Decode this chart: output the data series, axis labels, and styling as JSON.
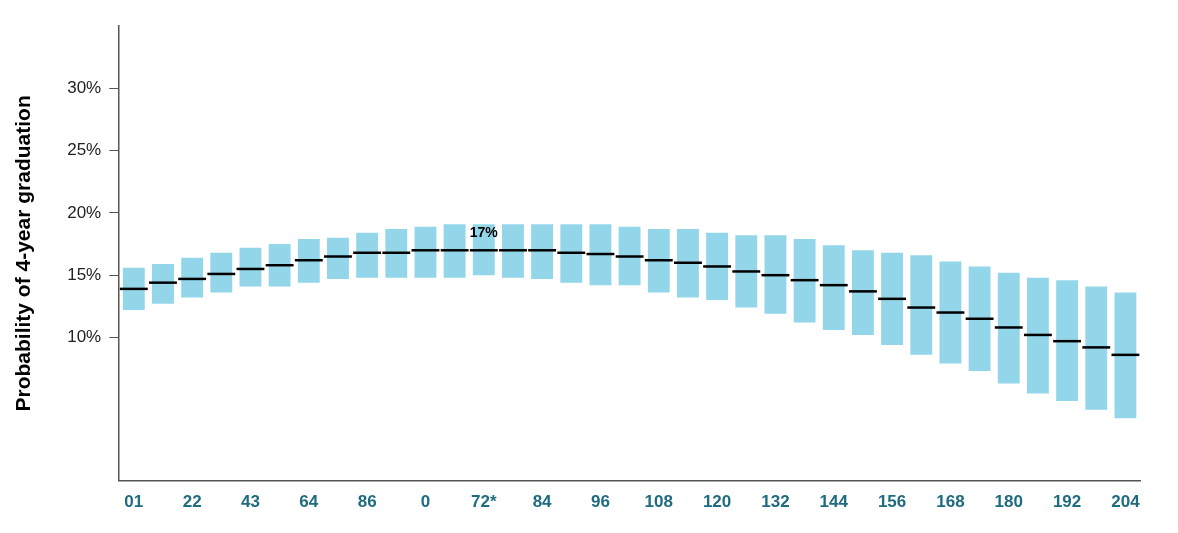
{
  "chart_data": {
    "type": "box",
    "ylabel": "Probability of 4-year graduation",
    "categories": [
      "01",
      null,
      "22",
      null,
      "43",
      null,
      "64",
      null,
      "86",
      null,
      "0",
      null,
      "72*",
      null,
      "84",
      null,
      "96",
      null,
      "108",
      null,
      "120",
      null,
      "132",
      null,
      "144",
      null,
      "156",
      null,
      "168",
      null,
      "180",
      null,
      "192",
      null,
      "204"
    ],
    "color": "#93d6ea",
    "boxes": [
      {
        "low": 12.2,
        "q1": 12.2,
        "median": 13.9,
        "q3": 15.6,
        "high": 15.6
      },
      {
        "low": 12.7,
        "q1": 12.7,
        "median": 14.4,
        "q3": 15.9,
        "high": 15.9
      },
      {
        "low": 13.2,
        "q1": 13.2,
        "median": 14.7,
        "q3": 16.4,
        "high": 16.4
      },
      {
        "low": 13.6,
        "q1": 13.6,
        "median": 15.1,
        "q3": 16.8,
        "high": 16.8
      },
      {
        "low": 14.1,
        "q1": 14.1,
        "median": 15.5,
        "q3": 17.2,
        "high": 17.2
      },
      {
        "low": 14.1,
        "q1": 14.1,
        "median": 15.8,
        "q3": 17.5,
        "high": 17.5
      },
      {
        "low": 14.4,
        "q1": 14.4,
        "median": 16.2,
        "q3": 17.9,
        "high": 17.9
      },
      {
        "low": 14.7,
        "q1": 14.7,
        "median": 16.5,
        "q3": 18.0,
        "high": 18.0
      },
      {
        "low": 14.8,
        "q1": 14.8,
        "median": 16.8,
        "q3": 18.4,
        "high": 18.4
      },
      {
        "low": 14.8,
        "q1": 14.8,
        "median": 16.8,
        "q3": 18.7,
        "high": 18.7
      },
      {
        "low": 14.8,
        "q1": 14.8,
        "median": 17.0,
        "q3": 18.9,
        "high": 18.9
      },
      {
        "low": 14.8,
        "q1": 14.8,
        "median": 17.0,
        "q3": 19.1,
        "high": 19.1
      },
      {
        "low": 15.0,
        "q1": 15.0,
        "median": 17.0,
        "q3": 19.1,
        "high": 19.1
      },
      {
        "low": 14.8,
        "q1": 14.8,
        "median": 17.0,
        "q3": 19.1,
        "high": 19.1
      },
      {
        "low": 14.7,
        "q1": 14.7,
        "median": 17.0,
        "q3": 19.1,
        "high": 19.1
      },
      {
        "low": 14.4,
        "q1": 14.4,
        "median": 16.8,
        "q3": 19.1,
        "high": 19.1
      },
      {
        "low": 14.2,
        "q1": 14.2,
        "median": 16.7,
        "q3": 19.1,
        "high": 19.1
      },
      {
        "low": 14.2,
        "q1": 14.2,
        "median": 16.5,
        "q3": 18.9,
        "high": 18.9
      },
      {
        "low": 13.6,
        "q1": 13.6,
        "median": 16.2,
        "q3": 18.7,
        "high": 18.7
      },
      {
        "low": 13.2,
        "q1": 13.2,
        "median": 16.0,
        "q3": 18.7,
        "high": 18.7
      },
      {
        "low": 13.0,
        "q1": 13.0,
        "median": 15.7,
        "q3": 18.4,
        "high": 18.4
      },
      {
        "low": 12.4,
        "q1": 12.4,
        "median": 15.3,
        "q3": 18.2,
        "high": 18.2
      },
      {
        "low": 11.9,
        "q1": 11.9,
        "median": 15.0,
        "q3": 18.2,
        "high": 18.2
      },
      {
        "low": 11.2,
        "q1": 11.2,
        "median": 14.6,
        "q3": 17.9,
        "high": 17.9
      },
      {
        "low": 10.6,
        "q1": 10.6,
        "median": 14.2,
        "q3": 17.4,
        "high": 17.4
      },
      {
        "low": 10.2,
        "q1": 10.2,
        "median": 13.7,
        "q3": 17.0,
        "high": 17.0
      },
      {
        "low": 9.4,
        "q1": 9.4,
        "median": 13.1,
        "q3": 16.8,
        "high": 16.8
      },
      {
        "low": 8.6,
        "q1": 8.6,
        "median": 12.4,
        "q3": 16.6,
        "high": 16.6
      },
      {
        "low": 7.9,
        "q1": 7.9,
        "median": 12.0,
        "q3": 16.1,
        "high": 16.1
      },
      {
        "low": 7.3,
        "q1": 7.3,
        "median": 11.5,
        "q3": 15.7,
        "high": 15.7
      },
      {
        "low": 6.3,
        "q1": 6.3,
        "median": 10.8,
        "q3": 15.2,
        "high": 15.2
      },
      {
        "low": 5.5,
        "q1": 5.5,
        "median": 10.2,
        "q3": 14.8,
        "high": 14.8
      },
      {
        "low": 4.9,
        "q1": 4.9,
        "median": 9.7,
        "q3": 14.6,
        "high": 14.6
      },
      {
        "low": 4.2,
        "q1": 4.2,
        "median": 9.2,
        "q3": 14.1,
        "high": 14.1
      },
      {
        "low": 3.5,
        "q1": 3.5,
        "median": 8.6,
        "q3": 13.6,
        "high": 13.6
      }
    ],
    "ylim": [
      -1.5,
      35
    ],
    "yticks": [
      {
        "value": 10,
        "label": "10%"
      },
      {
        "value": 15,
        "label": "15%"
      },
      {
        "value": 20,
        "label": "20%"
      },
      {
        "value": 25,
        "label": "25%"
      },
      {
        "value": 30,
        "label": "30%"
      }
    ],
    "annotations": [
      {
        "text": "17%",
        "x": "72*",
        "y": 17
      }
    ],
    "grid": false,
    "legend": false
  }
}
